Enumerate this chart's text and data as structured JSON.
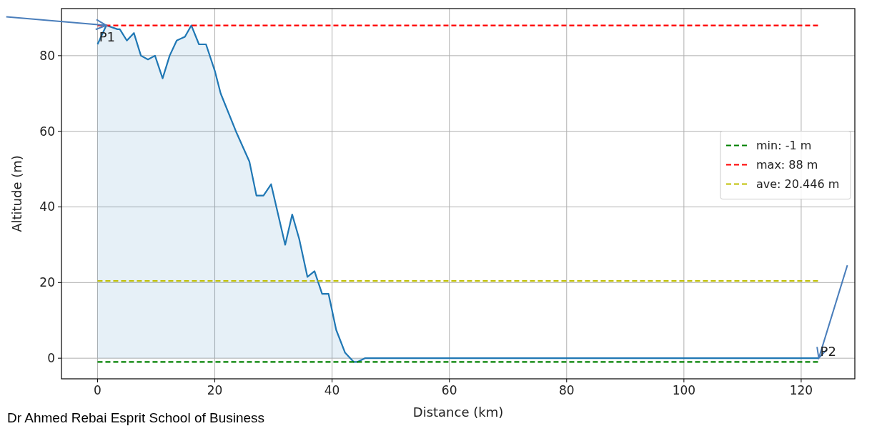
{
  "chart_data": {
    "type": "area",
    "xlabel": "Distance (km)",
    "ylabel": "Altitude (m)",
    "xlim": [
      -6.15,
      129.15
    ],
    "ylim": [
      -5.45,
      92.45
    ],
    "xticks": [
      0,
      20,
      40,
      60,
      80,
      100,
      120
    ],
    "yticks": [
      0,
      20,
      40,
      60,
      80
    ],
    "grid": true,
    "legend": "right",
    "series": [
      {
        "color": "#1f77b4",
        "x": [
          0,
          1.5,
          3.4,
          3.8,
          5,
          6.2,
          7.4,
          8.6,
          9.8,
          11.1,
          12.3,
          13.5,
          14.9,
          16,
          17.3,
          18.5,
          20,
          21,
          23.6,
          25.9,
          27.1,
          28.3,
          29.6,
          32,
          33.2,
          34.4,
          35.8,
          37,
          38.3,
          39.4,
          40.7,
          42.2,
          43.7,
          44.3,
          45.6,
          123
        ],
        "values": [
          83,
          88,
          87,
          87,
          84,
          86,
          80,
          79,
          80,
          74,
          80,
          84,
          85,
          88,
          83,
          83,
          76,
          70,
          60,
          52,
          43,
          43,
          46,
          30,
          38,
          31.5,
          21.5,
          23,
          17,
          17,
          7.5,
          1.5,
          -1,
          -1,
          0,
          0
        ]
      }
    ],
    "ref_lines": [
      {
        "axis": "y",
        "value": -1,
        "label": "min: -1 m",
        "color": "#008000",
        "line_style": "dashed"
      },
      {
        "axis": "y",
        "value": 88,
        "label": "max: 88 m",
        "color": "#ff0000",
        "line_style": "dashed"
      },
      {
        "axis": "y",
        "value": 20.446,
        "label": "ave: 20.446 m",
        "color": "#bfbf00",
        "line_style": "dashed"
      }
    ],
    "annotations": [
      {
        "text": "P1",
        "x": 1.5,
        "y": 88
      },
      {
        "text": "P2",
        "x": 123,
        "y": 0
      },
      "Dr Ahmed Rebai Esprit School of Business"
    ]
  }
}
